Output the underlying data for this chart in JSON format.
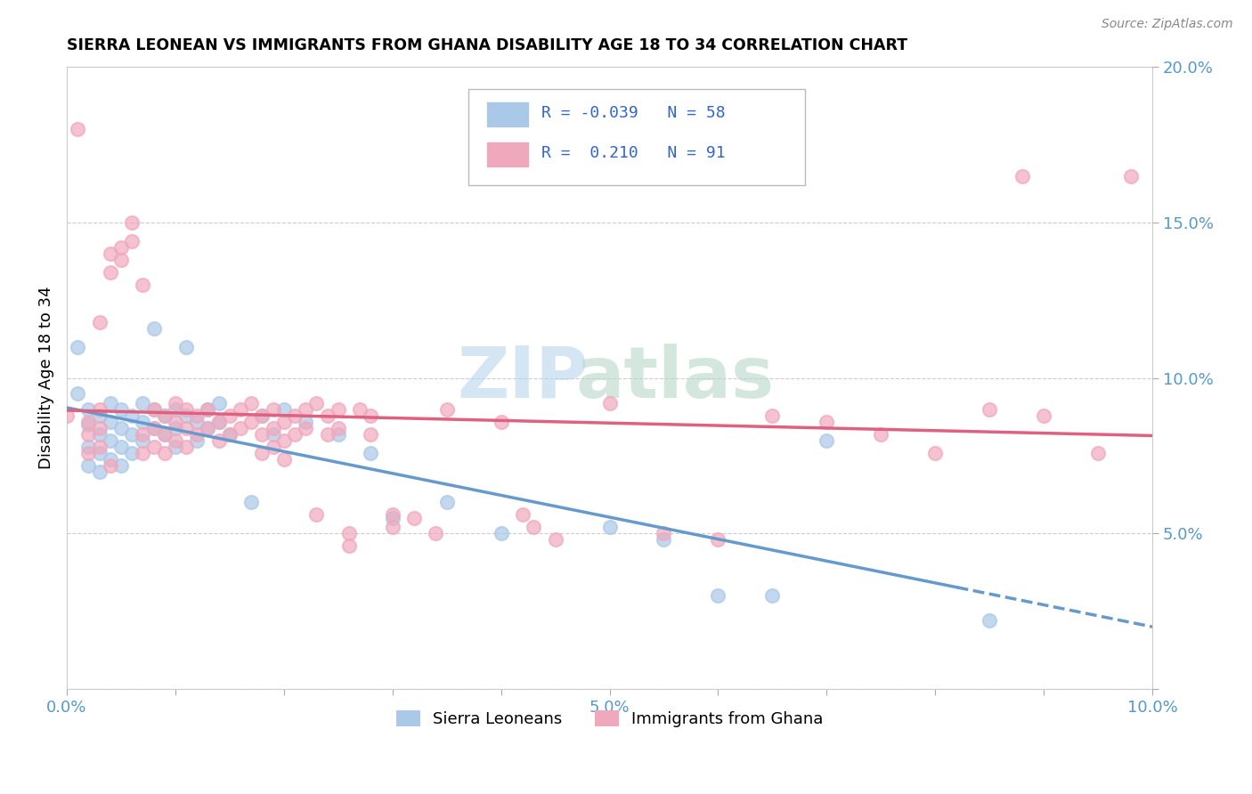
{
  "title": "SIERRA LEONEAN VS IMMIGRANTS FROM GHANA DISABILITY AGE 18 TO 34 CORRELATION CHART",
  "source": "Source: ZipAtlas.com",
  "ylabel_label": "Disability Age 18 to 34",
  "x_min": 0.0,
  "x_max": 0.1,
  "y_min": 0.0,
  "y_max": 0.2,
  "x_ticks": [
    0.0,
    0.01,
    0.02,
    0.03,
    0.04,
    0.05,
    0.06,
    0.07,
    0.08,
    0.09,
    0.1
  ],
  "x_tick_labels": [
    "0.0%",
    "",
    "",
    "",
    "",
    "5.0%",
    "",
    "",
    "",
    "",
    "10.0%"
  ],
  "y_ticks": [
    0.0,
    0.05,
    0.1,
    0.15,
    0.2
  ],
  "y_tick_labels": [
    "",
    "5.0%",
    "10.0%",
    "15.0%",
    "20.0%"
  ],
  "series1_color": "#aac8e8",
  "series2_color": "#f0a8bc",
  "line1_color": "#6699cc",
  "line2_color": "#e06080",
  "R1": -0.039,
  "N1": 58,
  "R2": 0.21,
  "N2": 91,
  "sierra_leoneans": [
    [
      0.001,
      0.095
    ],
    [
      0.001,
      0.11
    ],
    [
      0.002,
      0.085
    ],
    [
      0.002,
      0.09
    ],
    [
      0.002,
      0.078
    ],
    [
      0.002,
      0.072
    ],
    [
      0.003,
      0.088
    ],
    [
      0.003,
      0.082
    ],
    [
      0.003,
      0.076
    ],
    [
      0.003,
      0.07
    ],
    [
      0.004,
      0.092
    ],
    [
      0.004,
      0.086
    ],
    [
      0.004,
      0.08
    ],
    [
      0.004,
      0.074
    ],
    [
      0.005,
      0.09
    ],
    [
      0.005,
      0.084
    ],
    [
      0.005,
      0.078
    ],
    [
      0.005,
      0.072
    ],
    [
      0.006,
      0.088
    ],
    [
      0.006,
      0.082
    ],
    [
      0.006,
      0.076
    ],
    [
      0.007,
      0.092
    ],
    [
      0.007,
      0.086
    ],
    [
      0.007,
      0.08
    ],
    [
      0.008,
      0.09
    ],
    [
      0.008,
      0.084
    ],
    [
      0.008,
      0.116
    ],
    [
      0.009,
      0.088
    ],
    [
      0.009,
      0.082
    ],
    [
      0.01,
      0.09
    ],
    [
      0.01,
      0.084
    ],
    [
      0.01,
      0.078
    ],
    [
      0.011,
      0.11
    ],
    [
      0.011,
      0.088
    ],
    [
      0.012,
      0.086
    ],
    [
      0.012,
      0.08
    ],
    [
      0.013,
      0.09
    ],
    [
      0.013,
      0.084
    ],
    [
      0.014,
      0.092
    ],
    [
      0.014,
      0.086
    ],
    [
      0.015,
      0.082
    ],
    [
      0.017,
      0.06
    ],
    [
      0.018,
      0.088
    ],
    [
      0.019,
      0.082
    ],
    [
      0.02,
      0.09
    ],
    [
      0.022,
      0.086
    ],
    [
      0.025,
      0.082
    ],
    [
      0.028,
      0.076
    ],
    [
      0.03,
      0.055
    ],
    [
      0.035,
      0.06
    ],
    [
      0.04,
      0.05
    ],
    [
      0.05,
      0.052
    ],
    [
      0.055,
      0.048
    ],
    [
      0.06,
      0.03
    ],
    [
      0.065,
      0.03
    ],
    [
      0.07,
      0.08
    ],
    [
      0.085,
      0.022
    ]
  ],
  "immigrants_ghana": [
    [
      0.0,
      0.088
    ],
    [
      0.001,
      0.18
    ],
    [
      0.002,
      0.086
    ],
    [
      0.002,
      0.082
    ],
    [
      0.002,
      0.076
    ],
    [
      0.003,
      0.09
    ],
    [
      0.003,
      0.084
    ],
    [
      0.003,
      0.078
    ],
    [
      0.003,
      0.118
    ],
    [
      0.004,
      0.14
    ],
    [
      0.004,
      0.134
    ],
    [
      0.004,
      0.072
    ],
    [
      0.005,
      0.142
    ],
    [
      0.005,
      0.138
    ],
    [
      0.006,
      0.15
    ],
    [
      0.006,
      0.144
    ],
    [
      0.007,
      0.082
    ],
    [
      0.007,
      0.076
    ],
    [
      0.007,
      0.13
    ],
    [
      0.008,
      0.09
    ],
    [
      0.008,
      0.084
    ],
    [
      0.008,
      0.078
    ],
    [
      0.009,
      0.088
    ],
    [
      0.009,
      0.082
    ],
    [
      0.009,
      0.076
    ],
    [
      0.01,
      0.092
    ],
    [
      0.01,
      0.086
    ],
    [
      0.01,
      0.08
    ],
    [
      0.011,
      0.09
    ],
    [
      0.011,
      0.084
    ],
    [
      0.011,
      0.078
    ],
    [
      0.012,
      0.088
    ],
    [
      0.012,
      0.082
    ],
    [
      0.013,
      0.09
    ],
    [
      0.013,
      0.084
    ],
    [
      0.014,
      0.086
    ],
    [
      0.014,
      0.08
    ],
    [
      0.015,
      0.088
    ],
    [
      0.015,
      0.082
    ],
    [
      0.016,
      0.09
    ],
    [
      0.016,
      0.084
    ],
    [
      0.017,
      0.092
    ],
    [
      0.017,
      0.086
    ],
    [
      0.018,
      0.088
    ],
    [
      0.018,
      0.082
    ],
    [
      0.018,
      0.076
    ],
    [
      0.019,
      0.09
    ],
    [
      0.019,
      0.084
    ],
    [
      0.019,
      0.078
    ],
    [
      0.02,
      0.086
    ],
    [
      0.02,
      0.08
    ],
    [
      0.02,
      0.074
    ],
    [
      0.021,
      0.088
    ],
    [
      0.021,
      0.082
    ],
    [
      0.022,
      0.09
    ],
    [
      0.022,
      0.084
    ],
    [
      0.023,
      0.092
    ],
    [
      0.023,
      0.056
    ],
    [
      0.024,
      0.088
    ],
    [
      0.024,
      0.082
    ],
    [
      0.025,
      0.09
    ],
    [
      0.025,
      0.084
    ],
    [
      0.026,
      0.05
    ],
    [
      0.026,
      0.046
    ],
    [
      0.027,
      0.09
    ],
    [
      0.028,
      0.088
    ],
    [
      0.028,
      0.082
    ],
    [
      0.03,
      0.056
    ],
    [
      0.03,
      0.052
    ],
    [
      0.032,
      0.055
    ],
    [
      0.034,
      0.05
    ],
    [
      0.035,
      0.09
    ],
    [
      0.04,
      0.086
    ],
    [
      0.042,
      0.056
    ],
    [
      0.043,
      0.052
    ],
    [
      0.045,
      0.048
    ],
    [
      0.05,
      0.092
    ],
    [
      0.055,
      0.05
    ],
    [
      0.06,
      0.048
    ],
    [
      0.065,
      0.088
    ],
    [
      0.07,
      0.086
    ],
    [
      0.075,
      0.082
    ],
    [
      0.08,
      0.076
    ],
    [
      0.085,
      0.09
    ],
    [
      0.088,
      0.165
    ],
    [
      0.09,
      0.088
    ],
    [
      0.095,
      0.076
    ],
    [
      0.098,
      0.165
    ]
  ]
}
